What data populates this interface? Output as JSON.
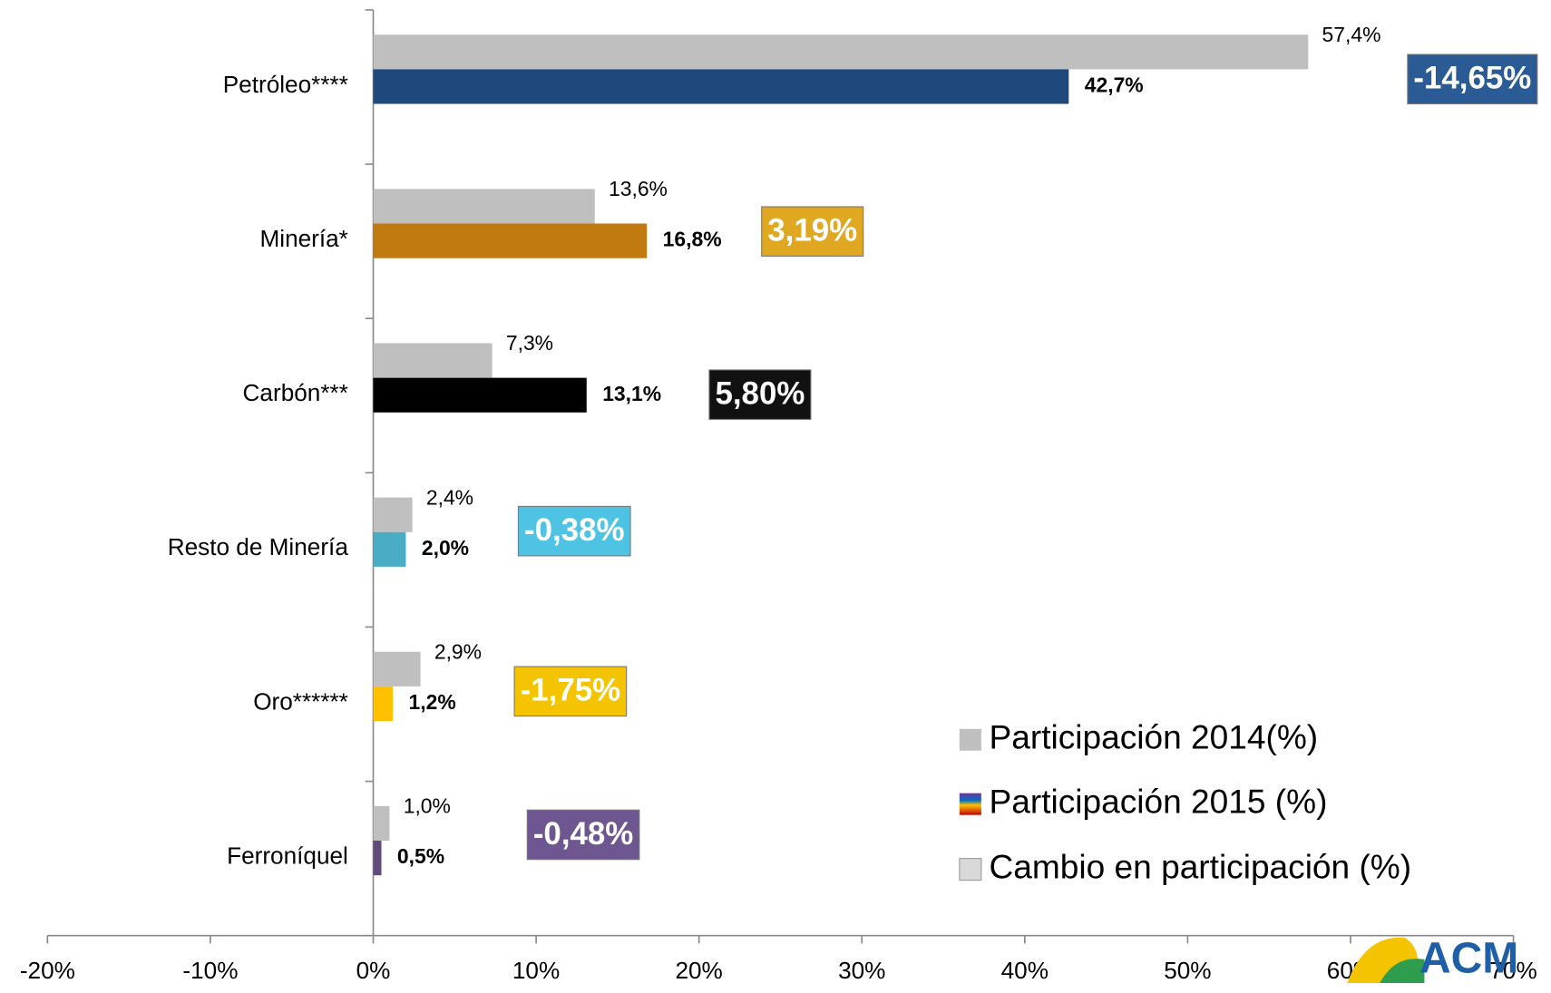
{
  "chart_data": {
    "type": "bar",
    "orientation": "horizontal",
    "categories": [
      "Petróleo****",
      "Minería*",
      "Carbón***",
      "Resto de Minería",
      "Oro******",
      "Ferroníquel"
    ],
    "series": [
      {
        "name": "Participación 2014(%)",
        "color": "#bfbfbf",
        "values": [
          57.4,
          13.6,
          7.3,
          2.4,
          2.9,
          1.0
        ],
        "value_labels": [
          "57,4%",
          "13,6%",
          "7,3%",
          "2,4%",
          "2,9%",
          "1,0%"
        ]
      },
      {
        "name": "Participación 2015 (%)",
        "color": "#1f497d",
        "colors": [
          "#1f497d",
          "#c07a10",
          "#000000",
          "#4bacc6",
          "#ffc000",
          "#604a7b"
        ],
        "values": [
          42.7,
          16.8,
          13.1,
          2.0,
          1.2,
          0.5
        ],
        "value_labels": [
          "42,7%",
          "16,8%",
          "13,1%",
          "2,0%",
          "1,2%",
          "0,5%"
        ]
      },
      {
        "name": "Cambio en participación (%)",
        "color": "#a6a6a6",
        "colors": [
          "#2b5b95",
          "#e0a820",
          "#111111",
          "#4fc3e3",
          "#f5c400",
          "#6e5690"
        ],
        "values": [
          -14.65,
          3.19,
          5.8,
          -0.38,
          -1.75,
          -0.48
        ],
        "value_labels": [
          "-14,65%",
          "3,19%",
          "5,80%",
          "-0,38%",
          "-1,75%",
          "-0,48%"
        ]
      }
    ],
    "xlim": [
      -20,
      70
    ],
    "xticks": [
      {
        "value": -20,
        "label": "-20%"
      },
      {
        "value": -10,
        "label": "-10%"
      },
      {
        "value": 0,
        "label": "0%"
      },
      {
        "value": 10,
        "label": "10%"
      },
      {
        "value": 20,
        "label": "20%"
      },
      {
        "value": 30,
        "label": "30%"
      },
      {
        "value": 40,
        "label": "40%"
      },
      {
        "value": 50,
        "label": "50%"
      },
      {
        "value": 60,
        "label": "60%"
      },
      {
        "value": 70,
        "label": "70%"
      }
    ],
    "legend": "bottom-right",
    "logo": "ACM"
  }
}
